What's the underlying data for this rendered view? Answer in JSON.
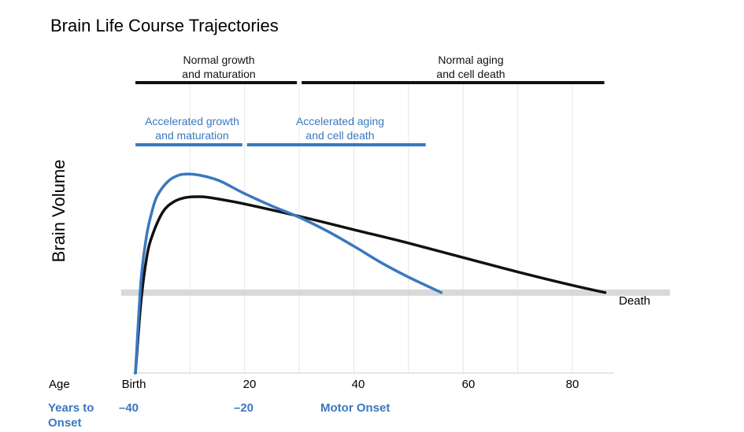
{
  "title": "Brain Life Course Trajectories",
  "ylabel": "Brain Volume",
  "spans": {
    "normal_growth": "Normal growth\nand maturation",
    "normal_aging": "Normal aging\nand cell death",
    "accel_growth": "Accelerated growth\nand maturation",
    "accel_aging": "Accelerated aging\nand cell death"
  },
  "death_label": "Death",
  "age_row": {
    "label": "Age",
    "ticks": [
      "Birth",
      "20",
      "40",
      "60",
      "80"
    ]
  },
  "onset_row": {
    "label_line1": "Years to",
    "label_line2": "Onset",
    "ticks": [
      "–40",
      "–20",
      "Motor Onset"
    ]
  },
  "colors": {
    "normal": "#111111",
    "accelerated": "#3a78c0",
    "death_band": "#d9d9d9",
    "grid": "#e6e6e6"
  },
  "chart_data": {
    "type": "line",
    "xlabel": "Age",
    "ylabel": "Brain Volume",
    "xlim": [
      0,
      88
    ],
    "x_ticks": [
      0,
      20,
      40,
      60,
      80
    ],
    "grid": true,
    "series": [
      {
        "key": "normal",
        "x": [
          0,
          1,
          2,
          3,
          5,
          7,
          9,
          11,
          13,
          16,
          20,
          30,
          40,
          50,
          60,
          70,
          80,
          86
        ],
        "y": [
          0.0,
          0.34,
          0.55,
          0.66,
          0.78,
          0.83,
          0.85,
          0.855,
          0.853,
          0.84,
          0.82,
          0.76,
          0.695,
          0.63,
          0.56,
          0.49,
          0.425,
          0.39
        ]
      },
      {
        "key": "accelerated",
        "x": [
          0,
          1,
          2,
          3,
          4,
          6,
          8,
          10,
          12,
          14,
          16,
          20,
          25,
          30,
          35,
          40,
          45,
          50,
          56
        ],
        "y": [
          0.0,
          0.44,
          0.66,
          0.78,
          0.86,
          0.93,
          0.96,
          0.965,
          0.958,
          0.945,
          0.925,
          0.87,
          0.81,
          0.755,
          0.69,
          0.615,
          0.535,
          0.465,
          0.39
        ]
      }
    ],
    "death_level": 0.39,
    "spans_x": {
      "normal_growth": [
        0,
        30
      ],
      "normal_aging": [
        30,
        87
      ],
      "accel_growth": [
        0,
        20
      ],
      "accel_aging": [
        21,
        53
      ]
    }
  }
}
